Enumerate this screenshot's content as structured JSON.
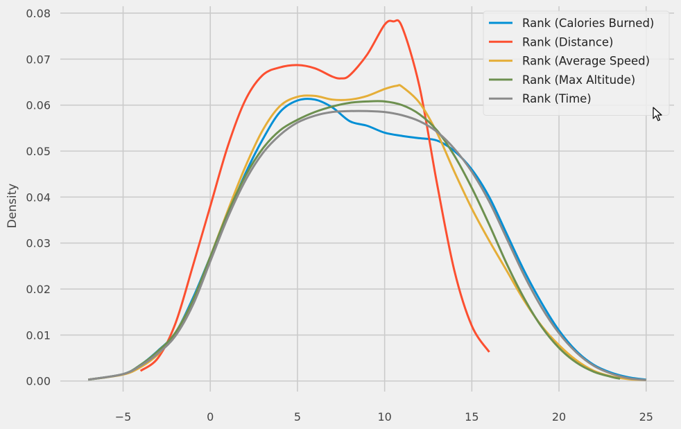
{
  "chart_data": {
    "type": "line",
    "title": "",
    "xlabel": "",
    "ylabel": "Density",
    "xlim": [
      -8.6,
      26.6
    ],
    "ylim": [
      -0.0023,
      0.0815
    ],
    "xticks": [
      -5,
      0,
      5,
      10,
      15,
      20,
      25
    ],
    "xtick_labels": [
      "−5",
      "0",
      "5",
      "10",
      "15",
      "20",
      "25"
    ],
    "yticks": [
      0.0,
      0.01,
      0.02,
      0.03,
      0.04,
      0.05,
      0.06,
      0.07,
      0.08
    ],
    "ytick_labels": [
      "0.00",
      "0.01",
      "0.02",
      "0.03",
      "0.04",
      "0.05",
      "0.06",
      "0.07",
      "0.08"
    ],
    "grid": true,
    "legend_position": "top-right",
    "background": "#f0f0f0",
    "grid_color": "#cbcbcb",
    "series": [
      {
        "name": "Rank (Calories Burned)",
        "color": "#008fd5",
        "x": [
          -7,
          -5,
          -4,
          -3,
          -2,
          -1,
          0,
          1,
          2,
          3,
          4,
          5,
          6,
          7,
          8,
          9,
          10,
          11,
          12,
          13,
          14,
          15,
          16,
          17,
          18,
          19,
          20,
          21,
          22,
          23,
          24,
          25
        ],
        "y": [
          0.0003,
          0.0015,
          0.0035,
          0.0066,
          0.0105,
          0.018,
          0.027,
          0.036,
          0.045,
          0.0525,
          0.0585,
          0.061,
          0.0612,
          0.0595,
          0.0565,
          0.0555,
          0.054,
          0.0533,
          0.0528,
          0.0523,
          0.05,
          0.046,
          0.04,
          0.032,
          0.024,
          0.017,
          0.011,
          0.0065,
          0.0035,
          0.0018,
          0.0008,
          0.0003
        ]
      },
      {
        "name": "Rank (Distance)",
        "color": "#fc4f30",
        "x": [
          -4,
          -3,
          -2,
          -1,
          0,
          1,
          2,
          3,
          4,
          5,
          6,
          7,
          7.5,
          8,
          9,
          10,
          10.5,
          11,
          12,
          13,
          14,
          15,
          16
        ],
        "y": [
          0.0022,
          0.005,
          0.0125,
          0.025,
          0.038,
          0.051,
          0.061,
          0.0665,
          0.0682,
          0.0687,
          0.068,
          0.0662,
          0.0658,
          0.0665,
          0.071,
          0.0775,
          0.0782,
          0.077,
          0.064,
          0.043,
          0.024,
          0.012,
          0.0063
        ]
      },
      {
        "name": "Rank (Average Speed)",
        "color": "#e5ae38",
        "x": [
          -7,
          -5,
          -4,
          -3,
          -2,
          -1,
          0,
          1,
          2,
          3,
          4,
          5,
          6,
          7,
          8,
          9,
          10,
          10.7,
          11,
          12,
          13,
          14,
          15,
          16,
          17,
          18,
          19,
          20,
          21,
          22,
          23,
          24,
          25
        ],
        "y": [
          0.0003,
          0.0014,
          0.003,
          0.0058,
          0.0105,
          0.0175,
          0.027,
          0.037,
          0.0465,
          0.0545,
          0.0598,
          0.0618,
          0.062,
          0.0612,
          0.0612,
          0.062,
          0.0635,
          0.0642,
          0.064,
          0.0605,
          0.054,
          0.0455,
          0.0375,
          0.0305,
          0.024,
          0.0175,
          0.012,
          0.0078,
          0.0045,
          0.0022,
          0.001,
          0.0004,
          0.0002
        ]
      },
      {
        "name": "Rank (Max Altitude)",
        "color": "#6d904f",
        "x": [
          -7,
          -5,
          -4,
          -3,
          -2,
          -1,
          0,
          1,
          2,
          3,
          4,
          5,
          6,
          7,
          8,
          9,
          10,
          11,
          12,
          13,
          14,
          15,
          16,
          17,
          18,
          19,
          20,
          21,
          22,
          23,
          23.5
        ],
        "y": [
          0.0003,
          0.0015,
          0.0035,
          0.0065,
          0.0105,
          0.0175,
          0.027,
          0.0365,
          0.0445,
          0.0505,
          0.0545,
          0.0568,
          0.0585,
          0.0597,
          0.0605,
          0.0608,
          0.0608,
          0.06,
          0.058,
          0.0545,
          0.049,
          0.042,
          0.034,
          0.0255,
          0.018,
          0.0118,
          0.0072,
          0.004,
          0.002,
          0.0009,
          0.0005
        ]
      },
      {
        "name": "Rank (Time)",
        "color": "#8b8b8b",
        "x": [
          -7,
          -5,
          -4,
          -3,
          -2,
          -1,
          0,
          1,
          2,
          3,
          4,
          5,
          6,
          7,
          8,
          9,
          10,
          11,
          12,
          13,
          14,
          15,
          16,
          17,
          18,
          19,
          20,
          21,
          22,
          23,
          24,
          25
        ],
        "y": [
          0.0003,
          0.0015,
          0.0033,
          0.006,
          0.0098,
          0.0165,
          0.026,
          0.0355,
          0.0435,
          0.0495,
          0.0535,
          0.0562,
          0.0577,
          0.0585,
          0.0587,
          0.0587,
          0.0585,
          0.0578,
          0.0565,
          0.0542,
          0.0505,
          0.0455,
          0.039,
          0.031,
          0.023,
          0.016,
          0.0104,
          0.0062,
          0.0033,
          0.0016,
          0.0006,
          0.0002
        ]
      }
    ]
  }
}
